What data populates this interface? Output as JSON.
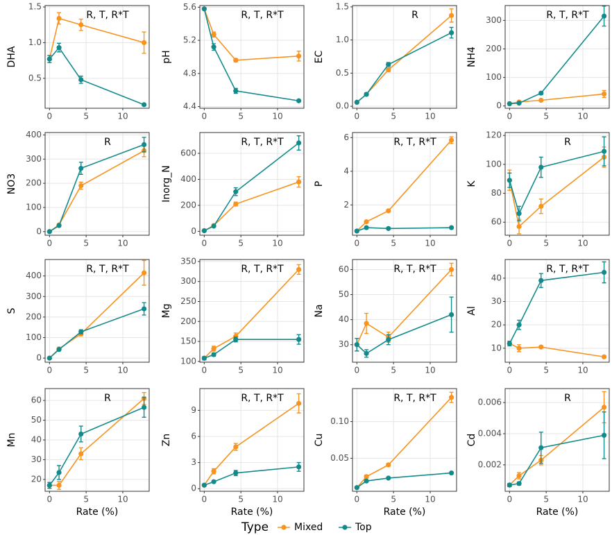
{
  "legend_title": "Type",
  "chart_data": [
    {
      "type": "line",
      "ylabel": "DHA",
      "annotation": "R, T, R*T",
      "x": [
        0,
        1.3,
        4.3,
        12.9
      ],
      "xlim": [
        -0.6,
        13.6
      ],
      "xticks": [
        0,
        5,
        10
      ],
      "ylim": [
        0.08,
        1.52
      ],
      "yticks": [
        0.5,
        {
          "value": 1,
          "label": "1.0"
        },
        1.5
      ],
      "grid": true,
      "series": [
        {
          "name": "Mixed",
          "color": "#f7931e",
          "values": [
            0.77,
            1.34,
            1.25,
            1.0
          ],
          "errors": [
            0.05,
            0.08,
            0.08,
            0.15
          ]
        },
        {
          "name": "Top",
          "color": "#128a8c",
          "values": [
            0.77,
            0.93,
            0.48,
            0.13
          ],
          "errors": [
            0.05,
            0.06,
            0.05,
            0.01
          ]
        }
      ]
    },
    {
      "type": "line",
      "ylabel": "pH",
      "annotation": "R, T, R*T",
      "x": [
        0,
        1.3,
        4.3,
        12.9
      ],
      "xlim": [
        -0.6,
        13.6
      ],
      "xticks": [
        0,
        5,
        10
      ],
      "ylim": [
        4.38,
        5.62
      ],
      "yticks": [
        4.4,
        4.8,
        5.2,
        5.6
      ],
      "grid": true,
      "series": [
        {
          "name": "Mixed",
          "color": "#f7931e",
          "values": [
            5.58,
            5.27,
            4.96,
            5.01
          ],
          "errors": [
            0.01,
            0.03,
            0.02,
            0.06
          ]
        },
        {
          "name": "Top",
          "color": "#128a8c",
          "values": [
            5.58,
            5.12,
            4.59,
            4.47
          ],
          "errors": [
            0.01,
            0.04,
            0.03,
            0.01
          ]
        }
      ]
    },
    {
      "type": "line",
      "ylabel": "EC",
      "annotation": "R",
      "x": [
        0,
        1.3,
        4.3,
        12.9
      ],
      "xlim": [
        -0.6,
        13.6
      ],
      "xticks": [
        0,
        5,
        10
      ],
      "ylim": [
        -0.03,
        1.52
      ],
      "yticks": [
        {
          "value": 0,
          "label": "0.0"
        },
        0.5,
        {
          "value": 1,
          "label": "1.0"
        },
        1.5
      ],
      "grid": true,
      "series": [
        {
          "name": "Mixed",
          "color": "#f7931e",
          "values": [
            0.06,
            0.18,
            0.55,
            1.37
          ],
          "errors": [
            0.01,
            0.02,
            0.03,
            0.1
          ]
        },
        {
          "name": "Top",
          "color": "#128a8c",
          "values": [
            0.06,
            0.18,
            0.63,
            1.11
          ],
          "errors": [
            0.01,
            0.02,
            0.03,
            0.08
          ]
        }
      ]
    },
    {
      "type": "line",
      "ylabel": "NH4",
      "annotation": "R, T, R*T",
      "x": [
        0,
        1.3,
        4.3,
        12.9
      ],
      "xlim": [
        -0.6,
        13.6
      ],
      "xticks": [
        0,
        5,
        10
      ],
      "ylim": [
        -8,
        352
      ],
      "yticks": [
        0,
        100,
        200,
        300
      ],
      "grid": true,
      "series": [
        {
          "name": "Mixed",
          "color": "#f7931e",
          "values": [
            8,
            14,
            20,
            42
          ],
          "errors": [
            2,
            2,
            3,
            12
          ]
        },
        {
          "name": "Top",
          "color": "#128a8c",
          "values": [
            8,
            10,
            45,
            315
          ],
          "errors": [
            2,
            2,
            5,
            35
          ]
        }
      ]
    },
    {
      "type": "line",
      "ylabel": "NO3",
      "annotation": "R",
      "x": [
        0,
        1.3,
        4.3,
        12.9
      ],
      "xlim": [
        -0.6,
        13.6
      ],
      "xticks": [
        0,
        5,
        10
      ],
      "ylim": [
        -15,
        410
      ],
      "yticks": [
        0,
        100,
        200,
        300,
        400
      ],
      "grid": true,
      "series": [
        {
          "name": "Mixed",
          "color": "#f7931e",
          "values": [
            0,
            28,
            190,
            335
          ],
          "errors": [
            1,
            4,
            15,
            25
          ]
        },
        {
          "name": "Top",
          "color": "#128a8c",
          "values": [
            0,
            25,
            262,
            360
          ],
          "errors": [
            1,
            3,
            25,
            30
          ]
        }
      ]
    },
    {
      "type": "line",
      "ylabel": "Inorg_N",
      "annotation": "R, T, R*T",
      "x": [
        0,
        1.3,
        4.3,
        12.9
      ],
      "xlim": [
        -0.6,
        13.6
      ],
      "xticks": [
        0,
        5,
        10
      ],
      "ylim": [
        -30,
        760
      ],
      "yticks": [
        0,
        200,
        400,
        600
      ],
      "grid": true,
      "series": [
        {
          "name": "Mixed",
          "color": "#f7931e",
          "values": [
            5,
            45,
            210,
            380
          ],
          "errors": [
            2,
            5,
            15,
            40
          ]
        },
        {
          "name": "Top",
          "color": "#128a8c",
          "values": [
            5,
            40,
            305,
            680
          ],
          "errors": [
            2,
            5,
            30,
            55
          ]
        }
      ]
    },
    {
      "type": "line",
      "ylabel": "P",
      "annotation": "R, T, R*T",
      "x": [
        0,
        1.3,
        4.3,
        12.9
      ],
      "xlim": [
        -0.6,
        13.6
      ],
      "xticks": [
        0,
        5,
        10
      ],
      "ylim": [
        0.2,
        6.3
      ],
      "yticks": [
        2,
        4,
        6
      ],
      "grid": true,
      "series": [
        {
          "name": "Mixed",
          "color": "#f7931e",
          "values": [
            0.45,
            1.0,
            1.65,
            5.85
          ],
          "errors": [
            0.03,
            0.05,
            0.06,
            0.2
          ]
        },
        {
          "name": "Top",
          "color": "#128a8c",
          "values": [
            0.45,
            0.65,
            0.6,
            0.65
          ],
          "errors": [
            0.03,
            0.03,
            0.02,
            0.03
          ]
        }
      ]
    },
    {
      "type": "line",
      "ylabel": "K",
      "annotation": "R",
      "x": [
        0,
        1.3,
        4.3,
        12.9
      ],
      "xlim": [
        -0.6,
        13.6
      ],
      "xticks": [
        0,
        5,
        10
      ],
      "ylim": [
        51,
        122
      ],
      "yticks": [
        60,
        80,
        100,
        120
      ],
      "grid": true,
      "series": [
        {
          "name": "Mixed",
          "color": "#f7931e",
          "values": [
            89,
            57,
            71,
            105
          ],
          "errors": [
            7,
            5,
            5,
            7
          ]
        },
        {
          "name": "Top",
          "color": "#128a8c",
          "values": [
            89,
            66,
            98,
            109
          ],
          "errors": [
            5,
            5,
            7,
            10
          ]
        }
      ]
    },
    {
      "type": "line",
      "ylabel": "S",
      "annotation": "R, T, R*T",
      "x": [
        0,
        1.3,
        4.3,
        12.9
      ],
      "xlim": [
        -0.6,
        13.6
      ],
      "xticks": [
        0,
        5,
        10
      ],
      "ylim": [
        -20,
        480
      ],
      "yticks": [
        0,
        100,
        200,
        300,
        400
      ],
      "grid": true,
      "series": [
        {
          "name": "Mixed",
          "color": "#f7931e",
          "values": [
            0,
            45,
            118,
            415
          ],
          "errors": [
            2,
            5,
            10,
            60
          ]
        },
        {
          "name": "Top",
          "color": "#128a8c",
          "values": [
            0,
            42,
            128,
            240
          ],
          "errors": [
            2,
            5,
            10,
            30
          ]
        }
      ]
    },
    {
      "type": "line",
      "ylabel": "Mg",
      "annotation": "R, T, R*T",
      "x": [
        0,
        1.3,
        4.3,
        12.9
      ],
      "xlim": [
        -0.6,
        13.6
      ],
      "xticks": [
        0,
        5,
        10
      ],
      "ylim": [
        98,
        355
      ],
      "yticks": [
        100,
        150,
        200,
        250,
        300,
        350
      ],
      "grid": true,
      "series": [
        {
          "name": "Mixed",
          "color": "#f7931e",
          "values": [
            108,
            132,
            163,
            330
          ],
          "errors": [
            4,
            6,
            8,
            12
          ]
        },
        {
          "name": "Top",
          "color": "#128a8c",
          "values": [
            108,
            117,
            155,
            155
          ],
          "errors": [
            4,
            4,
            6,
            12
          ]
        }
      ]
    },
    {
      "type": "line",
      "ylabel": "Na",
      "annotation": "R, T, R*T",
      "x": [
        0,
        1.3,
        4.3,
        12.9
      ],
      "xlim": [
        -0.6,
        13.6
      ],
      "xticks": [
        0,
        5,
        10
      ],
      "ylim": [
        23,
        64
      ],
      "yticks": [
        30,
        40,
        50,
        60
      ],
      "grid": true,
      "series": [
        {
          "name": "Mixed",
          "color": "#f7931e",
          "values": [
            30,
            38.5,
            33,
            60
          ],
          "errors": [
            2.5,
            4,
            2,
            2.5
          ]
        },
        {
          "name": "Top",
          "color": "#128a8c",
          "values": [
            30,
            26.5,
            32,
            42
          ],
          "errors": [
            2.5,
            1.5,
            2,
            7
          ]
        }
      ]
    },
    {
      "type": "line",
      "ylabel": "Al",
      "annotation": "R, T, R*T",
      "x": [
        0,
        1.3,
        4.3,
        12.9
      ],
      "xlim": [
        -0.6,
        13.6
      ],
      "xticks": [
        0,
        5,
        10
      ],
      "ylim": [
        4,
        48
      ],
      "yticks": [
        10,
        20,
        30,
        40
      ],
      "grid": true,
      "series": [
        {
          "name": "Mixed",
          "color": "#f7931e",
          "values": [
            12,
            10,
            10.5,
            6.3
          ],
          "errors": [
            1,
            1.5,
            0.5,
            0.5
          ]
        },
        {
          "name": "Top",
          "color": "#128a8c",
          "values": [
            12,
            20,
            39,
            42.5
          ],
          "errors": [
            1,
            2,
            3,
            4.5
          ]
        }
      ]
    },
    {
      "type": "line",
      "ylabel": "Mn",
      "annotation": "R",
      "xlabel": "Rate (%)",
      "x": [
        0,
        1.3,
        4.3,
        12.9
      ],
      "xlim": [
        -0.6,
        13.6
      ],
      "xticks": [
        0,
        5,
        10
      ],
      "ylim": [
        14,
        66
      ],
      "yticks": [
        20,
        30,
        40,
        50,
        60
      ],
      "grid": true,
      "series": [
        {
          "name": "Mixed",
          "color": "#f7931e",
          "values": [
            17,
            17,
            33,
            61
          ],
          "errors": [
            1.5,
            2,
            3,
            3
          ]
        },
        {
          "name": "Top",
          "color": "#128a8c",
          "values": [
            17,
            23.5,
            43,
            56.5
          ],
          "errors": [
            1.5,
            3.5,
            4,
            5
          ]
        }
      ]
    },
    {
      "type": "line",
      "ylabel": "Zn",
      "annotation": "R, T, R*T",
      "xlabel": "Rate (%)",
      "x": [
        0,
        1.3,
        4.3,
        12.9
      ],
      "xlim": [
        -0.6,
        13.6
      ],
      "xticks": [
        0,
        5,
        10
      ],
      "ylim": [
        -0.3,
        11.5
      ],
      "yticks": [
        0,
        3,
        6,
        9
      ],
      "grid": true,
      "series": [
        {
          "name": "Mixed",
          "color": "#f7931e",
          "values": [
            0.4,
            2.0,
            4.8,
            9.8
          ],
          "errors": [
            0.1,
            0.3,
            0.4,
            1.1
          ]
        },
        {
          "name": "Top",
          "color": "#128a8c",
          "values": [
            0.4,
            0.8,
            1.8,
            2.5
          ],
          "errors": [
            0.1,
            0.1,
            0.3,
            0.5
          ]
        }
      ]
    },
    {
      "type": "line",
      "ylabel": "Cu",
      "annotation": "R, T, R*T",
      "xlabel": "Rate (%)",
      "x": [
        0,
        1.3,
        4.3,
        12.9
      ],
      "xlim": [
        -0.6,
        13.6
      ],
      "xticks": [
        0,
        5,
        10
      ],
      "ylim": [
        0.005,
        0.145
      ],
      "yticks": [
        0.05,
        {
          "value": 0.1,
          "label": "0.10"
        }
      ],
      "grid": true,
      "series": [
        {
          "name": "Mixed",
          "color": "#f7931e",
          "values": [
            0.01,
            0.025,
            0.041,
            0.133
          ],
          "errors": [
            0.001,
            0.002,
            0.002,
            0.007
          ]
        },
        {
          "name": "Top",
          "color": "#128a8c",
          "values": [
            0.01,
            0.019,
            0.023,
            0.03
          ],
          "errors": [
            0.001,
            0.001,
            0.001,
            0.001
          ]
        }
      ]
    },
    {
      "type": "line",
      "ylabel": "Cd",
      "annotation": "R",
      "xlabel": "Rate (%)",
      "x": [
        0,
        1.3,
        4.3,
        12.9
      ],
      "xlim": [
        -0.6,
        13.6
      ],
      "xticks": [
        0,
        5,
        10
      ],
      "ylim": [
        0.0003,
        0.0069
      ],
      "yticks": [
        0.002,
        0.004,
        0.006
      ],
      "grid": true,
      "series": [
        {
          "name": "Mixed",
          "color": "#f7931e",
          "values": [
            0.0007,
            0.0013,
            0.0023,
            0.0057
          ],
          "errors": [
            0.0001,
            0.0002,
            0.0003,
            0.001
          ]
        },
        {
          "name": "Top",
          "color": "#128a8c",
          "values": [
            0.0007,
            0.0008,
            0.0031,
            0.0039
          ],
          "errors": [
            0.0001,
            0.0001,
            0.001,
            0.0015
          ]
        }
      ]
    }
  ]
}
